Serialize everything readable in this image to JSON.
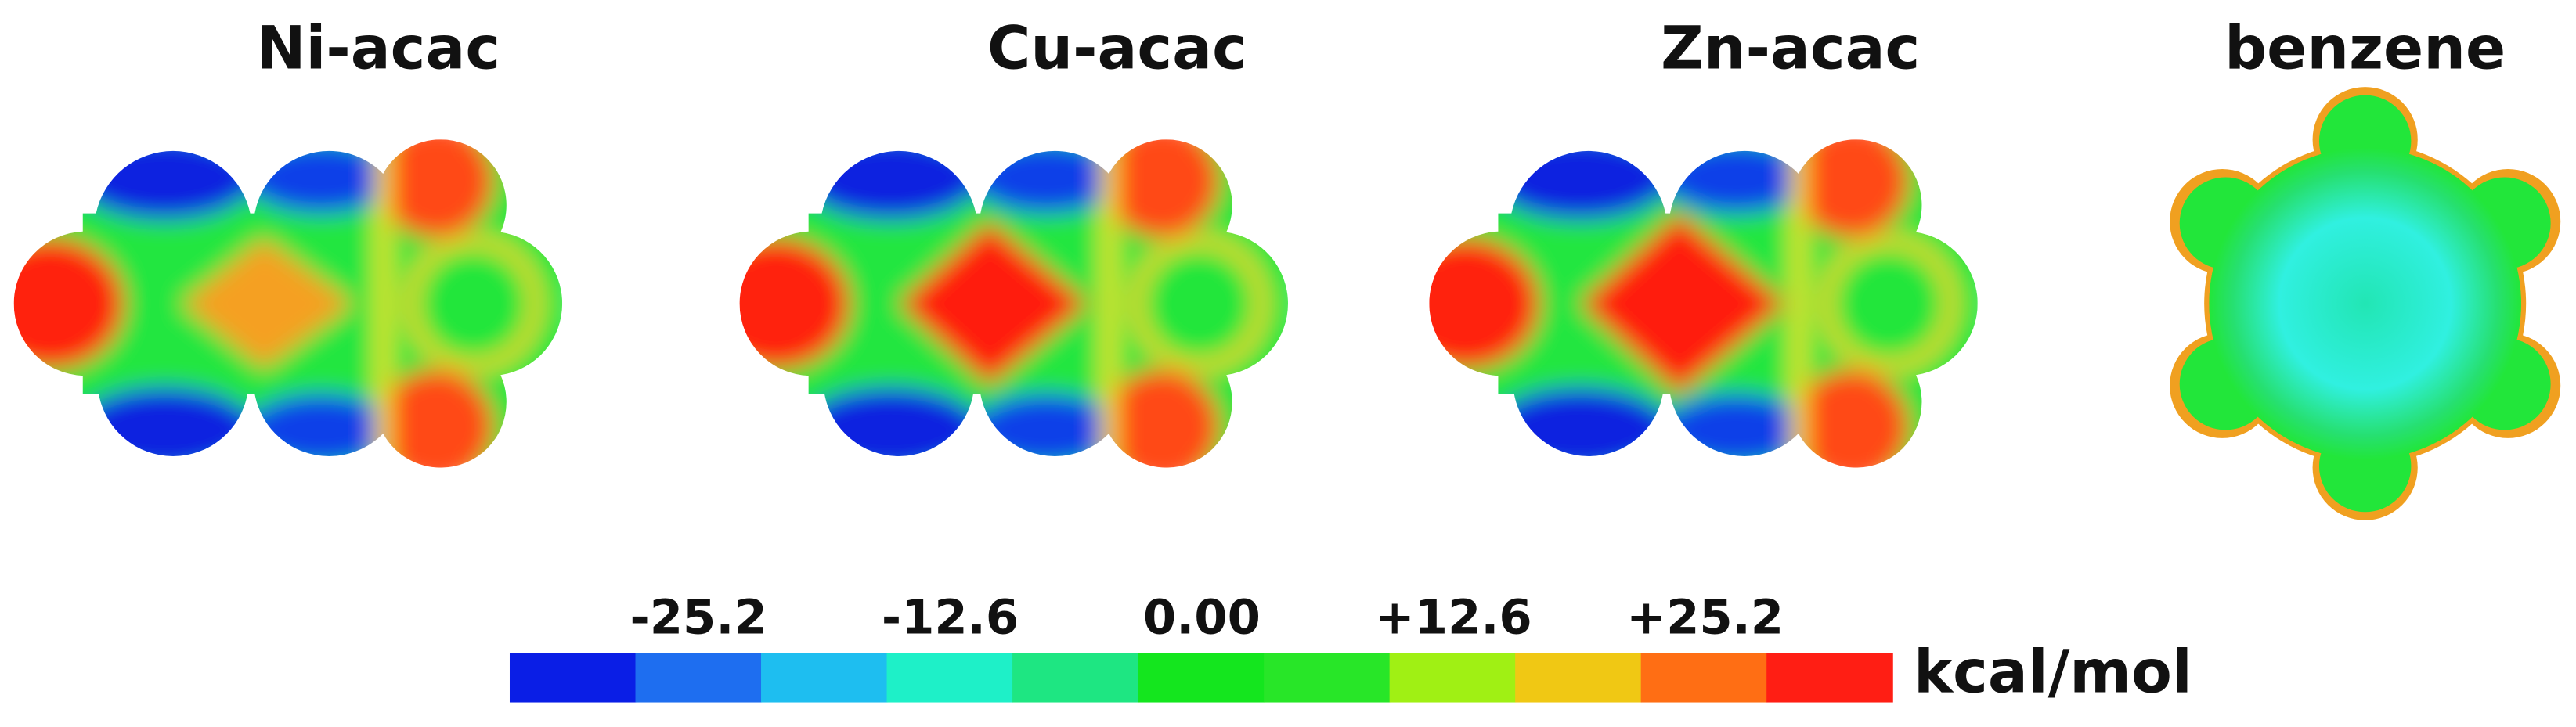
{
  "panels": [
    {
      "title": "Ni-acac"
    },
    {
      "title": "Cu-acac"
    },
    {
      "title": "Zn-acac"
    },
    {
      "title": "benzene"
    }
  ],
  "colorbar": {
    "ticks": [
      {
        "value": -25.2,
        "label": "-25.2"
      },
      {
        "value": -12.6,
        "label": "-12.6"
      },
      {
        "value": 0,
        "label": "0.00"
      },
      {
        "value": 12.6,
        "label": "+12.6"
      },
      {
        "value": 25.2,
        "label": "+25.2"
      }
    ],
    "unit": "kcal/mol",
    "colors": [
      "#0a1ee6",
      "#1e6ef0",
      "#1ebef0",
      "#1ef0c8",
      "#1ee682",
      "#14e61e",
      "#28e628",
      "#a0f014",
      "#f0c814",
      "#ff6e14",
      "#ff1e14"
    ]
  }
}
